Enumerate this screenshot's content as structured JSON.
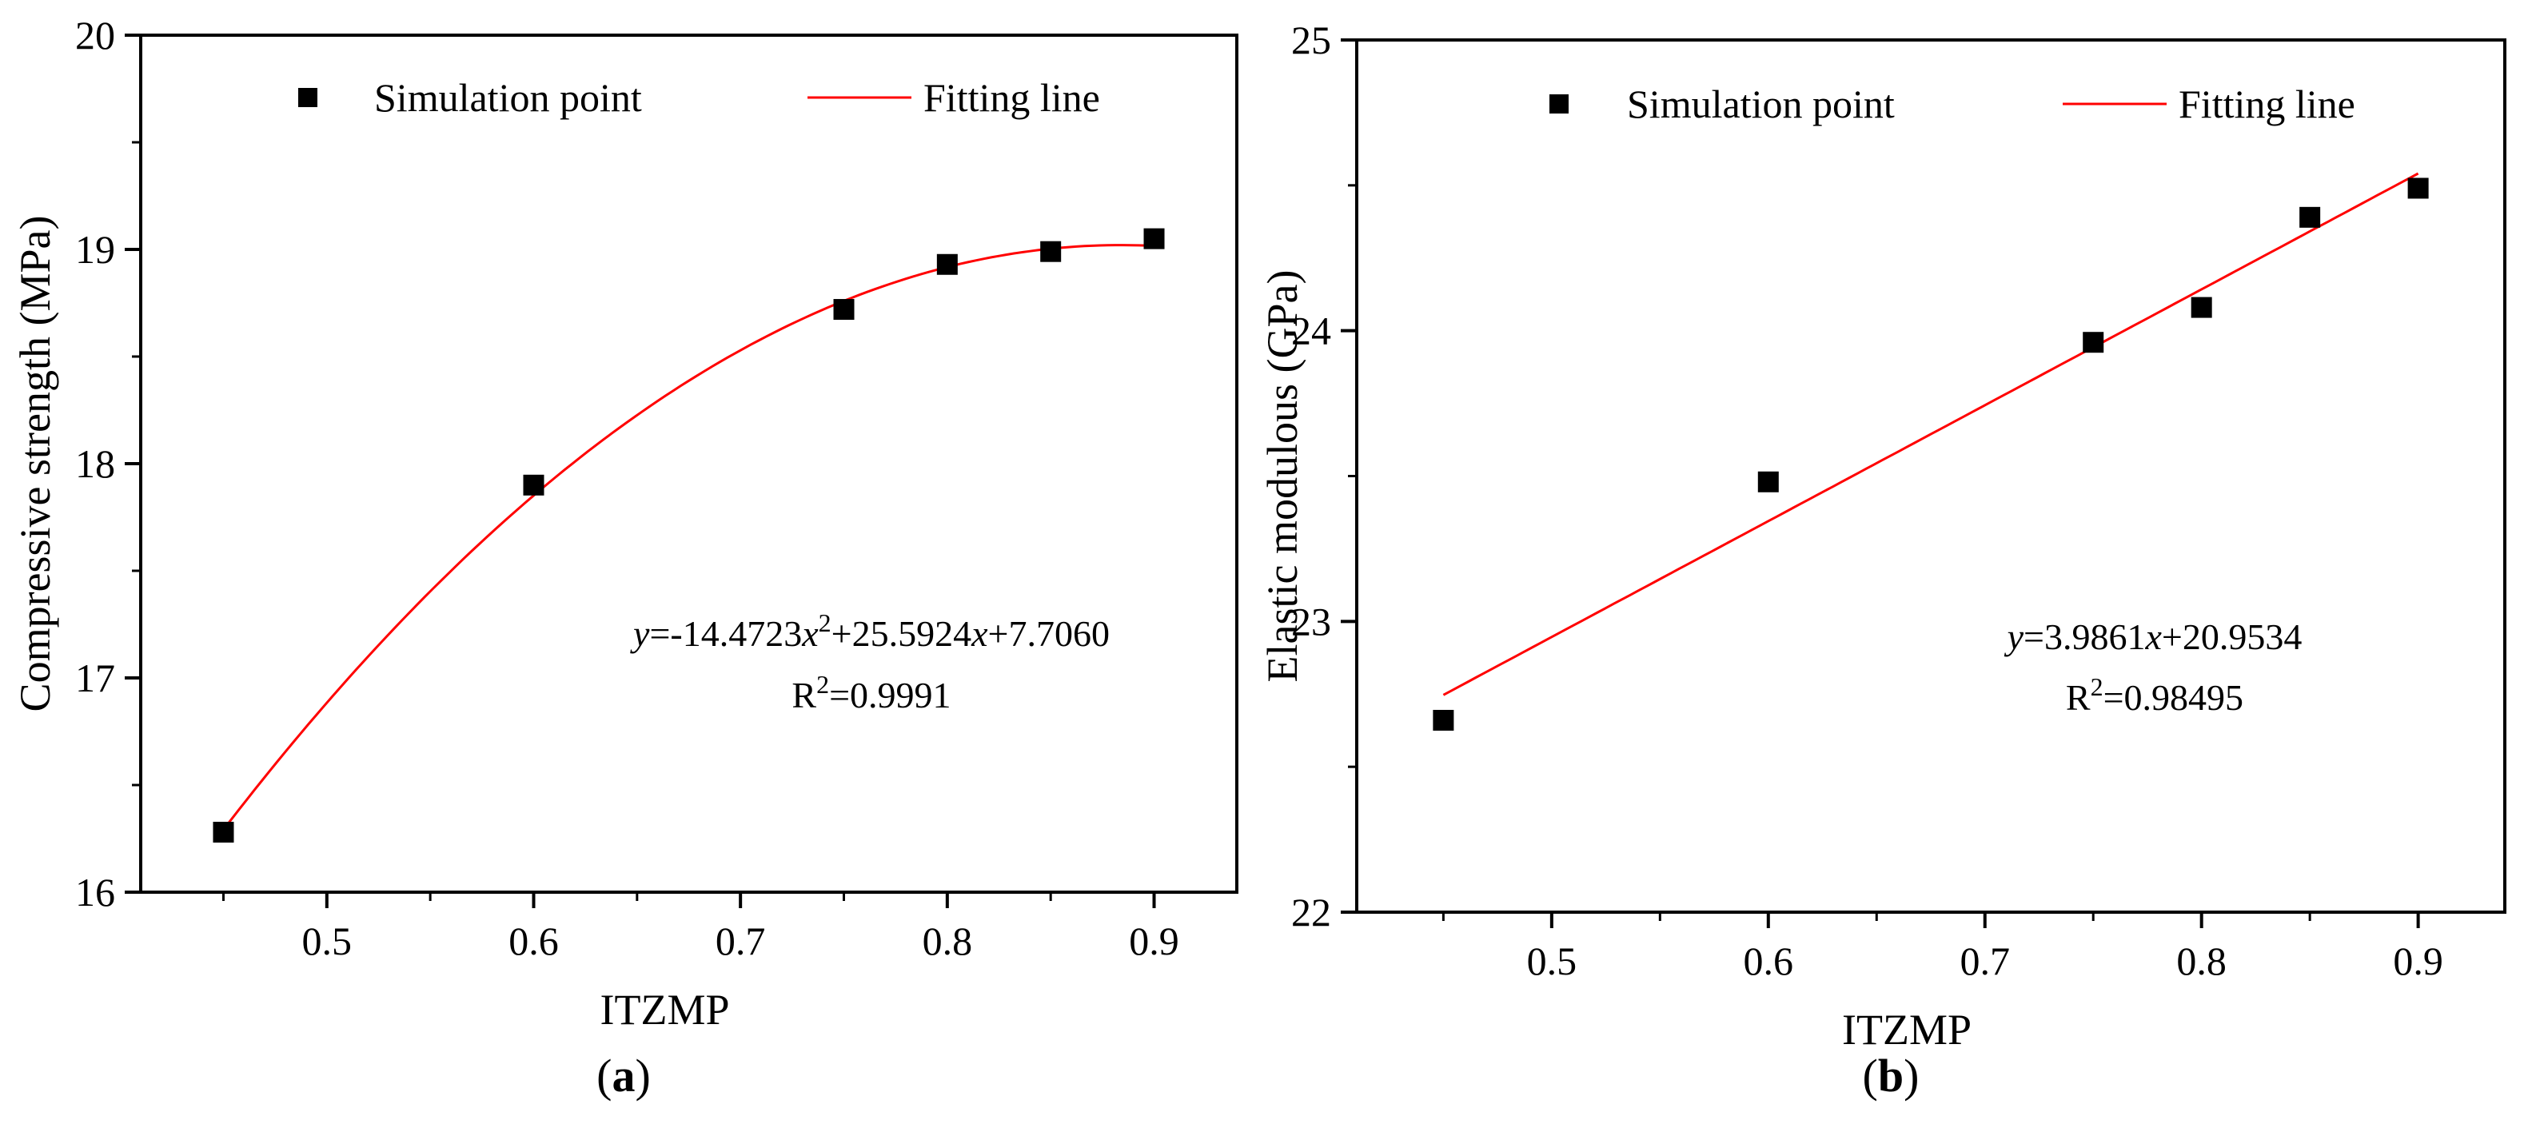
{
  "chart_data": [
    {
      "type": "scatter",
      "panel_label": "a",
      "xlabel": "ITZMP",
      "ylabel": "Compressive strength (MPa)",
      "xlim": [
        0.41,
        0.94
      ],
      "ylim": [
        16,
        20
      ],
      "xticks": [
        0.5,
        0.6,
        0.7,
        0.8,
        0.9
      ],
      "yticks": [
        16,
        17,
        18,
        19,
        20
      ],
      "xtick_labels": [
        "0.5",
        "0.6",
        "0.7",
        "0.8",
        "0.9"
      ],
      "ytick_labels": [
        "16",
        "17",
        "18",
        "19",
        "20"
      ],
      "series": [
        {
          "name": "Simulation point",
          "kind": "marker",
          "x": [
            0.45,
            0.6,
            0.75,
            0.8,
            0.85,
            0.9
          ],
          "y": [
            16.28,
            17.9,
            18.72,
            18.93,
            18.99,
            19.05
          ]
        },
        {
          "name": "Fitting line",
          "kind": "fit",
          "model": "quadratic",
          "coefficients": [
            -14.4723,
            25.5924,
            7.706
          ],
          "x_range": [
            0.45,
            0.9
          ]
        }
      ],
      "legend": [
        "Simulation point",
        "Fitting line"
      ],
      "equation": {
        "lhs": "y",
        "body": "=-14.4723",
        "var1": "x",
        "power": "2",
        "mid": "+25.5924",
        "var2": "x",
        "tail": "+7.7060"
      },
      "r2": {
        "prefix": "R",
        "power": "2",
        "value": "=0.9991"
      },
      "colors": {
        "marker": "#000000",
        "fit": "#ff0000",
        "axis": "#000000"
      }
    },
    {
      "type": "scatter",
      "panel_label": "b",
      "xlabel": "ITZMP",
      "ylabel": "Elastic modulous (GPa)",
      "xlim": [
        0.41,
        0.94
      ],
      "ylim": [
        22,
        25
      ],
      "xticks": [
        0.5,
        0.6,
        0.7,
        0.8,
        0.9
      ],
      "yticks": [
        22,
        23,
        24,
        25
      ],
      "xtick_labels": [
        "0.5",
        "0.6",
        "0.7",
        "0.8",
        "0.9"
      ],
      "ytick_labels": [
        "22",
        "23",
        "24",
        "25"
      ],
      "series": [
        {
          "name": "Simulation point",
          "kind": "marker",
          "x": [
            0.45,
            0.6,
            0.75,
            0.8,
            0.85,
            0.9
          ],
          "y": [
            22.66,
            23.48,
            23.96,
            24.08,
            24.39,
            24.49
          ]
        },
        {
          "name": "Fitting line",
          "kind": "fit",
          "model": "linear",
          "coefficients": [
            3.9861,
            20.9534
          ],
          "x_range": [
            0.45,
            0.9
          ]
        }
      ],
      "legend": [
        "Simulation point",
        "Fitting line"
      ],
      "equation": {
        "lhs": "y",
        "body": "=3.9861",
        "var1": "x",
        "tail": "+20.9534"
      },
      "r2": {
        "prefix": "R",
        "power": "2",
        "value": "=0.98495"
      },
      "colors": {
        "marker": "#000000",
        "fit": "#ff0000",
        "axis": "#000000"
      }
    }
  ]
}
